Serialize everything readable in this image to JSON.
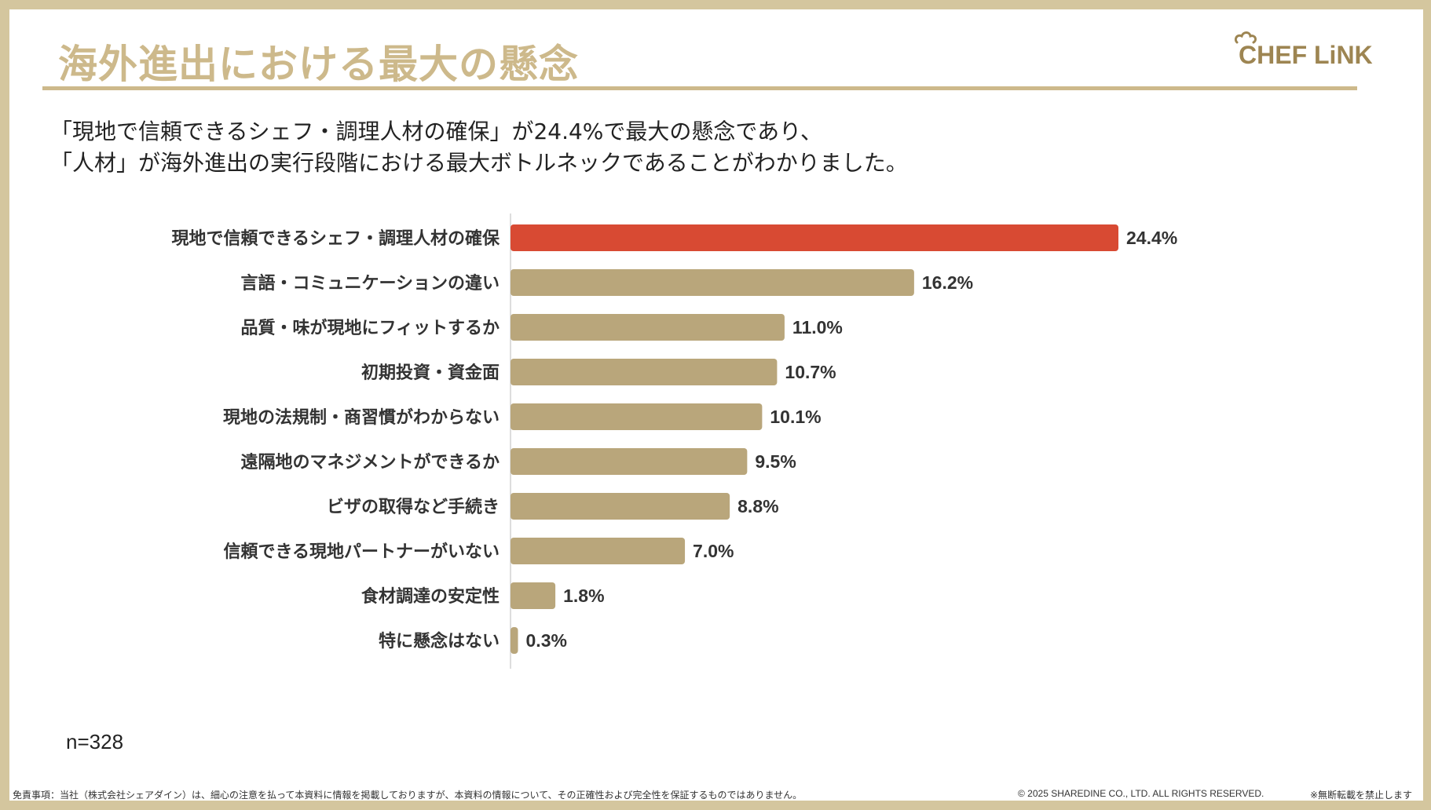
{
  "title": "海外進出における最大の懸念",
  "logo": {
    "text": "CHEF LiNK"
  },
  "lead": {
    "line1": "「現地で信頼できるシェフ・調理人材の確保」が24.4%で最大の懸念であり、",
    "line2": "「人材」が海外進出の実行段階における最大ボトルネックであることがわかりました。"
  },
  "colors": {
    "highlight": "#d84a33",
    "bar": "#b9a67b",
    "title": "#cdb98b",
    "frame": "#d4c69e"
  },
  "chart_data": {
    "type": "bar",
    "orientation": "horizontal",
    "categories": [
      "現地で信頼できるシェフ・調理人材の確保",
      "言語・コミュニケーションの違い",
      "品質・味が現地にフィットするか",
      "初期投資・資金面",
      "現地の法規制・商習慣がわからない",
      "遠隔地のマネジメントができるか",
      "ビザの取得など手続き",
      "信頼できる現地パートナーがいない",
      "食材調達の安定性",
      "特に懸念はない"
    ],
    "values": [
      24.4,
      16.2,
      11.0,
      10.7,
      10.1,
      9.5,
      8.8,
      7.0,
      1.8,
      0.3
    ],
    "value_labels": [
      "24.4%",
      "16.2%",
      "11.0%",
      "10.7%",
      "10.1%",
      "9.5%",
      "8.8%",
      "7.0%",
      "1.8%",
      "0.3%"
    ],
    "highlight_index": 0,
    "xlim": [
      0,
      24.4
    ],
    "grid": false,
    "legend": "none"
  },
  "sample_size": "n=328",
  "footer": {
    "disclaimer": "免責事項：当社（株式会社シェアダイン）は、細心の注意を払って本資料に情報を掲載しておりますが、本資料の情報について、その正確性および完全性を保証するものではありません。",
    "copyright": "© 2025 SHAREDINE CO., LTD. ALL RIGHTS RESERVED.",
    "note": "※無断転載を禁止します"
  }
}
